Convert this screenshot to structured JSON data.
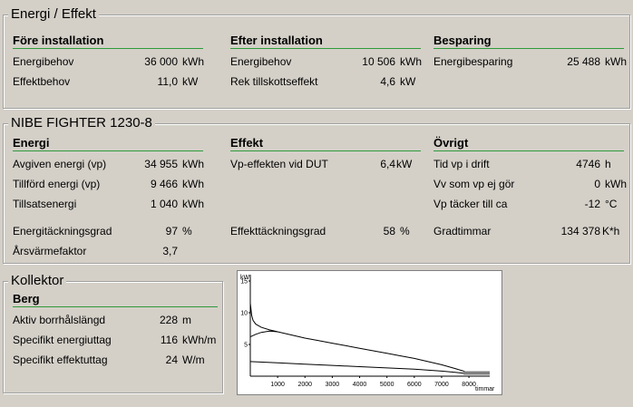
{
  "energi_effekt": {
    "title": "Energi / Effekt",
    "fore": {
      "header": "Före installation",
      "energibehov": {
        "label": "Energibehov",
        "value": "36 000",
        "unit": "kWh"
      },
      "effektbehov": {
        "label": "Effektbehov",
        "value": "11,0",
        "unit": "kW"
      }
    },
    "efter": {
      "header": "Efter installation",
      "energibehov": {
        "label": "Energibehov",
        "value": "10 506",
        "unit": "kWh"
      },
      "rek": {
        "label": "Rek tillskottseffekt",
        "value": "4,6",
        "unit": "kW"
      }
    },
    "besparing": {
      "header": "Besparing",
      "energibesparing": {
        "label": "Energibesparing",
        "value": "25 488",
        "unit": "kWh"
      }
    }
  },
  "nibe": {
    "title": "NIBE FIGHTER 1230-8",
    "energi": {
      "header": "Energi",
      "avgiven": {
        "label": "Avgiven energi (vp)",
        "value": "34 955",
        "unit": "kWh"
      },
      "tillford": {
        "label": "Tillförd energi (vp)",
        "value": "9 466",
        "unit": "kWh"
      },
      "tillsats": {
        "label": "Tillsatsenergi",
        "value": "1 040",
        "unit": "kWh"
      },
      "tackning": {
        "label": "Energitäckningsgrad",
        "value": "97",
        "unit": "%"
      },
      "arsvarme": {
        "label": "Årsvärmefaktor",
        "value": "3,7"
      }
    },
    "effekt": {
      "header": "Effekt",
      "vp_dut": {
        "label": "Vp-effekten vid DUT",
        "value": "6,4",
        "unit": "kW"
      },
      "tackning": {
        "label": "Effekttäckningsgrad",
        "value": "58",
        "unit": "%"
      }
    },
    "ovrigt": {
      "header": "Övrigt",
      "tid_vp": {
        "label": "Tid vp i drift",
        "value": "4746",
        "unit": "h"
      },
      "vv_ej": {
        "label": "Vv som vp ej gör",
        "value": "0",
        "unit": "kWh"
      },
      "vp_tacker": {
        "label": "Vp täcker till ca",
        "value": "-12",
        "unit": "°C"
      },
      "gradtimmar": {
        "label": "Gradtimmar",
        "value": "134 378",
        "unit": "K*h"
      }
    }
  },
  "kollektor": {
    "title": "Kollektor",
    "header": "Berg",
    "borrhal": {
      "label": "Aktiv borrhålslängd",
      "value": "228",
      "unit": "m"
    },
    "energiuttag": {
      "label": "Specifikt energiuttag",
      "value": "116",
      "unit": "kWh/m"
    },
    "effektuttag": {
      "label": "Specifikt effektuttag",
      "value": "24",
      "unit": "W/m"
    }
  },
  "chart_data": {
    "type": "line",
    "ylabel": "kW",
    "xlabel": "timmar",
    "xlim": [
      0,
      8760
    ],
    "ylim": [
      0,
      16
    ],
    "yticks": [
      "15",
      "10",
      "5"
    ],
    "xticks": [
      "1000",
      "2000",
      "3000",
      "4000",
      "5000",
      "6000",
      "7000",
      "8000"
    ],
    "colors": {
      "line": "#000000",
      "tail": "#808080"
    },
    "series": [
      {
        "x": [
          0,
          50,
          100,
          200,
          400,
          700,
          1000,
          1500,
          2000,
          2500,
          3000,
          3500,
          4000,
          4500,
          5000,
          5500,
          6000,
          6500,
          7000,
          7500,
          7800,
          8000,
          8200
        ],
        "values": [
          11.5,
          9.6,
          8.8,
          8.2,
          7.7,
          7.3,
          7.0,
          6.5,
          6.0,
          5.6,
          5.2,
          4.8,
          4.4,
          4.0,
          3.6,
          3.2,
          2.8,
          2.3,
          1.8,
          1.2,
          0.8,
          0.5,
          0.3
        ]
      },
      {
        "x": [
          0,
          200,
          400,
          700,
          1000
        ],
        "values": [
          6.2,
          6.6,
          6.9,
          7.1,
          7.0
        ]
      },
      {
        "x": [
          0,
          1000,
          2000,
          3000,
          4000,
          5000,
          6000,
          7000,
          7500,
          8000
        ],
        "values": [
          2.3,
          2.1,
          1.9,
          1.7,
          1.5,
          1.3,
          1.1,
          0.8,
          0.6,
          0.4
        ]
      },
      {
        "x": [
          7800,
          8000,
          8200,
          8760
        ],
        "values": [
          0.5,
          0.5,
          0.5,
          0.5
        ]
      }
    ]
  }
}
